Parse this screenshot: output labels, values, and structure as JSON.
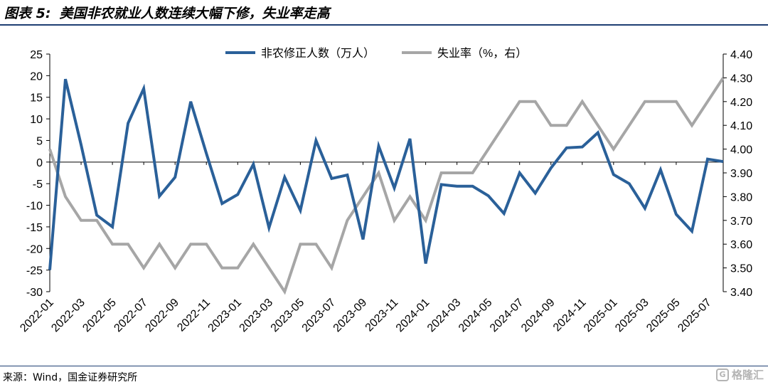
{
  "header": {
    "figure_label": "图表 5:",
    "title": "美国非农就业人数连续大幅下修，失业率走高"
  },
  "source": "来源：Wind，国金证券研究所",
  "watermark": {
    "icon": "G",
    "text": "格隆汇"
  },
  "colors": {
    "revision": "#2a6099",
    "unemployment": "#a6a6a6",
    "rule": "#1e3f73"
  },
  "chart_data": {
    "type": "line",
    "title": "",
    "xlabel": "",
    "ylabel": "",
    "y_left_lim": [
      -30,
      25
    ],
    "y_left_ticks": [
      25,
      20,
      15,
      10,
      5,
      0,
      -5,
      -10,
      -15,
      -20,
      -25,
      -30
    ],
    "y_right_lim": [
      3.4,
      4.4
    ],
    "y_right_ticks": [
      "4.40",
      "4.30",
      "4.20",
      "4.10",
      "4.00",
      "3.90",
      "3.80",
      "3.70",
      "3.60",
      "3.50",
      "3.40"
    ],
    "x_tick_labels": [
      "2022-01",
      "2022-03",
      "2022-05",
      "2022-07",
      "2022-09",
      "2022-11",
      "2023-01",
      "2023-03",
      "2023-05",
      "2023-07",
      "2023-09",
      "2023-11",
      "2024-01",
      "2024-03",
      "2024-05",
      "2024-07",
      "2024-09",
      "2024-11",
      "2025-01",
      "2025-03",
      "2025-05",
      "2025-07"
    ],
    "legend": {
      "placement": "top-center"
    },
    "grid": false,
    "series": [
      {
        "name": "非农修正人数（万人）",
        "axis": "left",
        "values": [
          -25,
          19.2,
          4,
          -12.3,
          -15,
          9,
          17,
          -7.9,
          -3.5,
          14,
          2,
          -9.6,
          -7.5,
          -0.5,
          -15.2,
          -3.5,
          -11.2,
          5,
          -3.8,
          -3,
          -17.9,
          3.7,
          -6,
          5.4,
          -23.5,
          -5.2,
          -5.6,
          -5.6,
          -7.8,
          -11.9,
          -2.5,
          -7.2,
          -1.4,
          3.3,
          3.5,
          6.8,
          -2.9,
          -5,
          -10.7,
          -1.8,
          -12.1,
          -16,
          0.7,
          0.1
        ]
      },
      {
        "name": "失业率（%，右）",
        "axis": "right",
        "values": [
          4.0,
          3.8,
          3.7,
          3.7,
          3.6,
          3.6,
          3.5,
          3.6,
          3.5,
          3.6,
          3.6,
          3.5,
          3.5,
          3.6,
          3.5,
          3.4,
          3.6,
          3.6,
          3.5,
          3.7,
          3.8,
          3.9,
          3.7,
          3.8,
          3.7,
          3.9,
          3.9,
          3.9,
          4.0,
          4.1,
          4.2,
          4.2,
          4.1,
          4.1,
          4.2,
          4.1,
          4.0,
          4.1,
          4.2,
          4.2,
          4.2,
          4.1,
          4.2,
          4.3
        ]
      }
    ]
  }
}
